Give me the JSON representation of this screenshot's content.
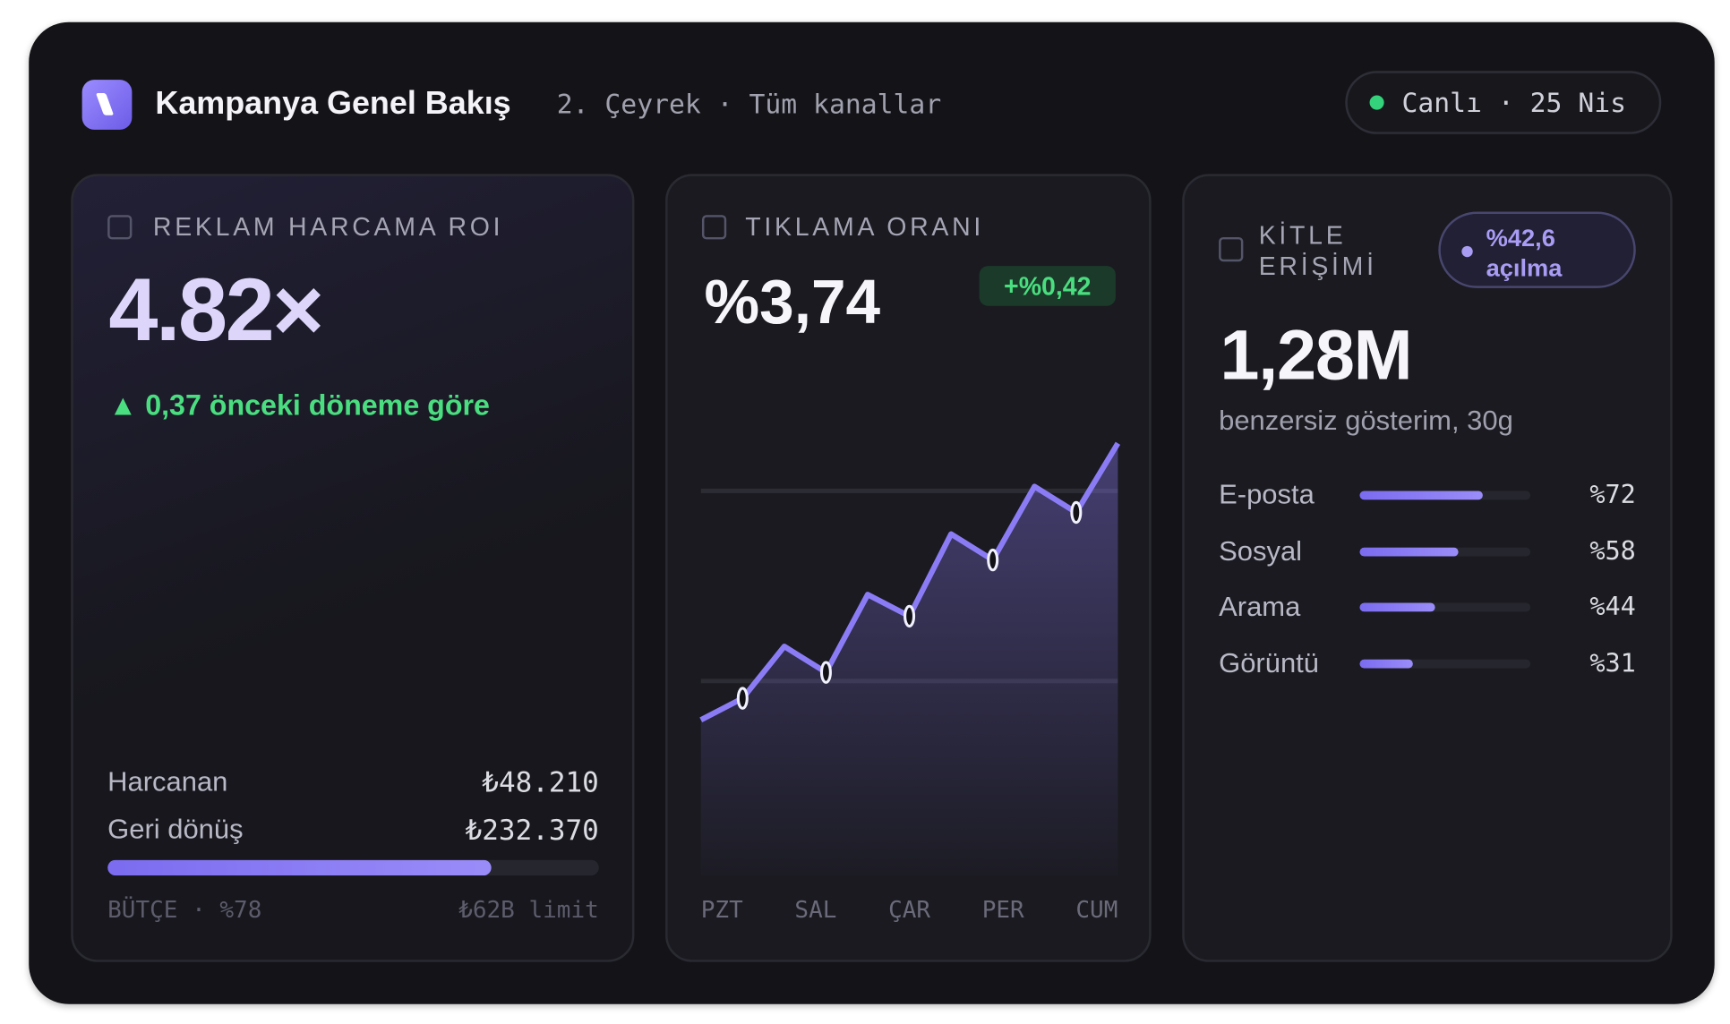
{
  "header": {
    "title": "Kampanya Genel Bakış",
    "subtitle": "2. Çeyrek · Tüm kanallar",
    "status": "Canlı · 25 Nis"
  },
  "roi_card": {
    "label": "REKLAM HARCAMA ROI",
    "value": "4.82×",
    "change": "▲ 0,37 önceki döneme göre",
    "rows": [
      {
        "label": "Harcanan",
        "value": "₺48.210"
      },
      {
        "label": "Geri dönüş",
        "value": "₺232.370"
      }
    ],
    "budget": {
      "label": "BÜTÇE · %78",
      "value": 78,
      "limit": "₺62B limit"
    }
  },
  "ctr_card": {
    "label": "TIKLAMA ORANI",
    "value": "%3,74",
    "change": "+%0,42"
  },
  "chart_data": {
    "type": "line",
    "categories": [
      "PZT",
      "SAL",
      "ÇAR",
      "PER",
      "CUM"
    ],
    "x": [
      -0.5,
      0,
      0.5,
      1,
      1.5,
      2,
      2.5,
      3,
      3.5,
      4,
      4.5
    ],
    "xlim": [
      -0.5,
      4.5
    ],
    "values": [
      36,
      41,
      53,
      47,
      65,
      60,
      79,
      73,
      90,
      84,
      100
    ],
    "ylim": [
      0,
      100
    ],
    "gridlines": [
      45,
      89
    ],
    "color": "#8b7cf6"
  },
  "reach_card": {
    "label": "KİTLE ERİŞİMİ",
    "badge": "%42,6 açılma",
    "value": "1,28M",
    "caption": "benzersiz gösterim, 30g",
    "channels": [
      {
        "name": "E-posta",
        "value": 72,
        "value_label": "%72"
      },
      {
        "name": "Sosyal",
        "value": 58,
        "value_label": "%58"
      },
      {
        "name": "Arama",
        "value": 44,
        "value_label": "%44"
      },
      {
        "name": "Görüntü",
        "value": 31,
        "value_label": "%31"
      }
    ]
  }
}
